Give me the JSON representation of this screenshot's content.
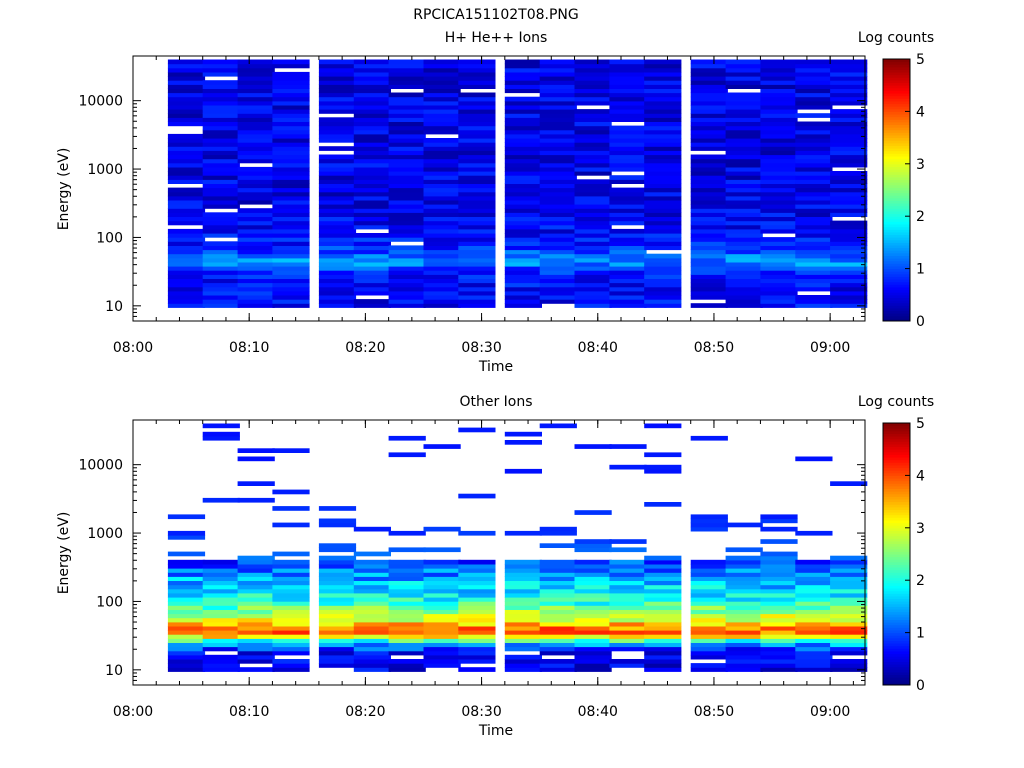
{
  "figure_title": "RPCICA151102T08.PNG",
  "colorbar_label": "Log counts",
  "colorbar_ticks": [
    "0",
    "1",
    "2",
    "3",
    "4",
    "5"
  ],
  "chart_data": [
    {
      "type": "heatmap",
      "title": "H+ He++ Ions",
      "xlabel": "Time",
      "ylabel": "Energy (eV)",
      "y_scale": "log",
      "ylim": [
        6,
        45000
      ],
      "xlim": [
        "08:00",
        "09:03"
      ],
      "x_ticks": [
        "08:00",
        "08:10",
        "08:20",
        "08:30",
        "08:40",
        "08:50",
        "09:00"
      ],
      "y_ticks": [
        "10",
        "100",
        "1000",
        "10000"
      ],
      "clim": [
        0,
        5
      ],
      "colormap": "jet",
      "time_bins": [
        "08:03",
        "08:06",
        "08:09",
        "08:12",
        "08:16",
        "08:19",
        "08:22",
        "08:25",
        "08:28",
        "08:32",
        "08:35",
        "08:38",
        "08:41",
        "08:44",
        "08:48",
        "08:51",
        "08:54",
        "08:57",
        "09:00"
      ],
      "profile": {
        "note_energy_eV": [
          8,
          10,
          13,
          18,
          25,
          33,
          42,
          52,
          65,
          85,
          130,
          300,
          1000,
          3000,
          10000,
          40000
        ],
        "log_counts": [
          0.5,
          0.6,
          0.6,
          0.6,
          0.7,
          0.8,
          1.3,
          1.2,
          0.9,
          0.7,
          0.6,
          0.5,
          0.5,
          0.5,
          0.5,
          0.5
        ]
      }
    },
    {
      "type": "heatmap",
      "title": "Other Ions",
      "xlabel": "Time",
      "ylabel": "Energy (eV)",
      "y_scale": "log",
      "ylim": [
        6,
        45000
      ],
      "xlim": [
        "08:00",
        "09:03"
      ],
      "x_ticks": [
        "08:00",
        "08:10",
        "08:20",
        "08:30",
        "08:40",
        "08:50",
        "09:00"
      ],
      "y_ticks": [
        "10",
        "100",
        "1000",
        "10000"
      ],
      "clim": [
        0,
        5
      ],
      "colormap": "jet",
      "time_bins": [
        "08:03",
        "08:06",
        "08:09",
        "08:12",
        "08:16",
        "08:19",
        "08:22",
        "08:25",
        "08:28",
        "08:32",
        "08:35",
        "08:38",
        "08:41",
        "08:44",
        "08:48",
        "08:51",
        "08:54",
        "08:57",
        "09:00"
      ],
      "profile": {
        "note_energy_eV": [
          8,
          10,
          13,
          18,
          25,
          28,
          33,
          38,
          45,
          55,
          70,
          100,
          200,
          400,
          1000,
          3000,
          10000,
          40000
        ],
        "log_counts": [
          0.3,
          0.4,
          0.4,
          0.5,
          1.6,
          2.4,
          3.7,
          3.9,
          3.6,
          3.0,
          2.6,
          2.0,
          1.5,
          0.9,
          0.5,
          0.4,
          0.3,
          0.3
        ]
      }
    }
  ]
}
